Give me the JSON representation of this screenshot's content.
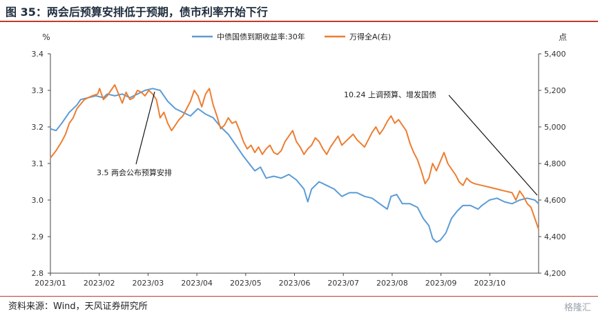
{
  "header": {
    "title": "图 35：两会后预算安排低于预期，债市利率开始下行"
  },
  "footer": {
    "source": "资料来源：Wind，天风证券研究所",
    "watermark": "格隆汇"
  },
  "chart_data": {
    "type": "line",
    "x": [
      "2023/01",
      "2023/02",
      "2023/03",
      "2023/04",
      "2023/05",
      "2023/06",
      "2023/07",
      "2023/08",
      "2023/09",
      "2023/10"
    ],
    "left_axis": {
      "unit": "%",
      "ylim": [
        2.8,
        3.4
      ],
      "ticks": [
        "3.4",
        "3.3",
        "3.2",
        "3.1",
        "3.0",
        "2.9",
        "2.8"
      ]
    },
    "right_axis": {
      "unit": "点",
      "ylim": [
        4200,
        5400
      ],
      "ticks": [
        "5,400",
        "5,200",
        "5,000",
        "4,800",
        "4,600",
        "4,400",
        "4,200"
      ]
    },
    "legend_position": "top-center",
    "grid": false,
    "colors": {
      "bond": "#5b9bd5",
      "index": "#ed7d31"
    },
    "series": [
      {
        "name": "中债国债到期收益率:30年",
        "axis": "left",
        "points": [
          [
            0,
            3.195
          ],
          [
            1.5,
            3.19
          ],
          [
            3,
            3.21
          ],
          [
            5,
            3.24
          ],
          [
            7,
            3.26
          ],
          [
            8,
            3.275
          ],
          [
            10,
            3.28
          ],
          [
            12,
            3.285
          ],
          [
            14,
            3.28
          ],
          [
            15,
            3.29
          ],
          [
            17,
            3.285
          ],
          [
            19,
            3.29
          ],
          [
            21,
            3.28
          ],
          [
            23,
            3.29
          ],
          [
            25,
            3.3
          ],
          [
            27,
            3.305
          ],
          [
            29,
            3.3
          ],
          [
            31,
            3.27
          ],
          [
            33,
            3.25
          ],
          [
            35,
            3.24
          ],
          [
            37,
            3.23
          ],
          [
            39,
            3.25
          ],
          [
            41,
            3.235
          ],
          [
            43,
            3.225
          ],
          [
            45,
            3.2
          ],
          [
            47,
            3.18
          ],
          [
            49,
            3.15
          ],
          [
            51,
            3.12
          ],
          [
            52.5,
            3.1
          ],
          [
            54,
            3.08
          ],
          [
            55.5,
            3.09
          ],
          [
            57,
            3.06
          ],
          [
            59,
            3.065
          ],
          [
            61,
            3.06
          ],
          [
            63,
            3.07
          ],
          [
            65,
            3.055
          ],
          [
            67,
            3.03
          ],
          [
            68,
            2.995
          ],
          [
            69,
            3.03
          ],
          [
            71,
            3.05
          ],
          [
            73,
            3.04
          ],
          [
            75,
            3.03
          ],
          [
            77,
            3.01
          ],
          [
            79,
            3.02
          ],
          [
            81,
            3.02
          ],
          [
            83,
            3.01
          ],
          [
            85,
            3.005
          ],
          [
            87,
            2.99
          ],
          [
            89,
            2.975
          ],
          [
            90,
            3.01
          ],
          [
            91.5,
            3.015
          ],
          [
            93,
            2.99
          ],
          [
            95,
            2.99
          ],
          [
            97,
            2.98
          ],
          [
            98.5,
            2.95
          ],
          [
            100,
            2.93
          ],
          [
            101,
            2.895
          ],
          [
            102,
            2.885
          ],
          [
            103,
            2.89
          ],
          [
            104.5,
            2.91
          ],
          [
            106,
            2.95
          ],
          [
            107.5,
            2.97
          ],
          [
            109,
            2.985
          ],
          [
            111,
            2.985
          ],
          [
            113,
            2.975
          ],
          [
            114,
            2.985
          ],
          [
            116,
            3.0
          ],
          [
            118,
            3.005
          ],
          [
            120,
            2.995
          ],
          [
            122,
            2.99
          ],
          [
            124,
            3.0
          ],
          [
            126,
            3.005
          ],
          [
            128,
            3.0
          ],
          [
            129,
            2.99
          ]
        ]
      },
      {
        "name": "万得全A(右)",
        "axis": "right",
        "points": [
          [
            0,
            4830
          ],
          [
            1.5,
            4870
          ],
          [
            3,
            4920
          ],
          [
            4,
            4960
          ],
          [
            5,
            5020
          ],
          [
            6,
            5050
          ],
          [
            7,
            5100
          ],
          [
            9,
            5150
          ],
          [
            11,
            5170
          ],
          [
            12.5,
            5180
          ],
          [
            13,
            5210
          ],
          [
            14,
            5150
          ],
          [
            15,
            5170
          ],
          [
            16,
            5200
          ],
          [
            17,
            5230
          ],
          [
            18,
            5180
          ],
          [
            19,
            5130
          ],
          [
            20,
            5190
          ],
          [
            21,
            5150
          ],
          [
            22,
            5160
          ],
          [
            23,
            5200
          ],
          [
            24,
            5190
          ],
          [
            25,
            5170
          ],
          [
            26,
            5200
          ],
          [
            27,
            5180
          ],
          [
            28,
            5150
          ],
          [
            29,
            5050
          ],
          [
            30,
            5080
          ],
          [
            31,
            5020
          ],
          [
            32,
            4980
          ],
          [
            33,
            5010
          ],
          [
            34,
            5040
          ],
          [
            35,
            5060
          ],
          [
            36,
            5100
          ],
          [
            37,
            5140
          ],
          [
            38,
            5200
          ],
          [
            39,
            5170
          ],
          [
            40,
            5110
          ],
          [
            41,
            5180
          ],
          [
            42,
            5210
          ],
          [
            43,
            5120
          ],
          [
            44,
            5060
          ],
          [
            45,
            4990
          ],
          [
            46,
            5010
          ],
          [
            47,
            5050
          ],
          [
            48,
            5020
          ],
          [
            49,
            5030
          ],
          [
            50,
            4980
          ],
          [
            51,
            4920
          ],
          [
            52,
            4880
          ],
          [
            53,
            4900
          ],
          [
            54,
            4860
          ],
          [
            55,
            4890
          ],
          [
            56,
            4850
          ],
          [
            57,
            4880
          ],
          [
            58,
            4900
          ],
          [
            59,
            4860
          ],
          [
            60,
            4850
          ],
          [
            61,
            4870
          ],
          [
            62,
            4920
          ],
          [
            63,
            4950
          ],
          [
            64,
            4980
          ],
          [
            65,
            4920
          ],
          [
            66,
            4890
          ],
          [
            67,
            4850
          ],
          [
            68,
            4880
          ],
          [
            69,
            4900
          ],
          [
            70,
            4940
          ],
          [
            71,
            4920
          ],
          [
            72,
            4880
          ],
          [
            73,
            4850
          ],
          [
            74,
            4890
          ],
          [
            75,
            4920
          ],
          [
            76,
            4950
          ],
          [
            77,
            4900
          ],
          [
            78,
            4920
          ],
          [
            79,
            4940
          ],
          [
            80,
            4960
          ],
          [
            81,
            4930
          ],
          [
            82,
            4910
          ],
          [
            83,
            4890
          ],
          [
            84,
            4930
          ],
          [
            85,
            4970
          ],
          [
            86,
            5000
          ],
          [
            87,
            4960
          ],
          [
            88,
            4990
          ],
          [
            89,
            5030
          ],
          [
            90,
            5060
          ],
          [
            91,
            5020
          ],
          [
            92,
            5040
          ],
          [
            93,
            5010
          ],
          [
            94,
            4980
          ],
          [
            95,
            4910
          ],
          [
            96,
            4860
          ],
          [
            97,
            4820
          ],
          [
            98,
            4760
          ],
          [
            99,
            4690
          ],
          [
            100,
            4720
          ],
          [
            101,
            4800
          ],
          [
            102,
            4760
          ],
          [
            103,
            4810
          ],
          [
            104,
            4860
          ],
          [
            105,
            4800
          ],
          [
            106,
            4770
          ],
          [
            107,
            4740
          ],
          [
            108,
            4700
          ],
          [
            109,
            4680
          ],
          [
            110,
            4720
          ],
          [
            111,
            4700
          ],
          [
            112,
            4690
          ],
          [
            114,
            4680
          ],
          [
            116,
            4670
          ],
          [
            118,
            4660
          ],
          [
            120,
            4650
          ],
          [
            122,
            4640
          ],
          [
            123,
            4600
          ],
          [
            124,
            4650
          ],
          [
            125,
            4620
          ],
          [
            126,
            4580
          ],
          [
            127,
            4560
          ],
          [
            128,
            4500
          ],
          [
            129,
            4440
          ]
        ]
      }
    ],
    "annotations": [
      {
        "text": "3.5 两会公布预算安排"
      },
      {
        "text": "10.24 上调预算、增发国债"
      }
    ]
  }
}
